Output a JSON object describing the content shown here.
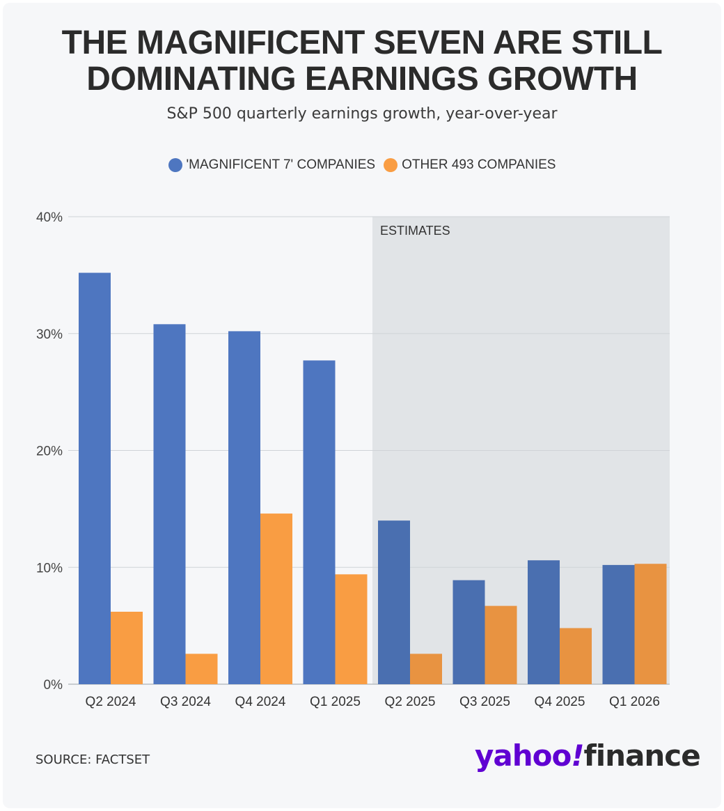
{
  "title_line1": "THE MAGNIFICENT SEVEN ARE STILL",
  "title_line2": "DOMINATING EARNINGS GROWTH",
  "subtitle": "S&P 500 quarterly earnings growth, year-over-year",
  "source": "SOURCE: FACTSET",
  "logo": {
    "part1": "yahoo",
    "bang": "!",
    "part2": "finance"
  },
  "colors": {
    "mag7": "#4e76c0",
    "mag7_est": "#4a6fb0",
    "other": "#f99d43",
    "other_est": "#e89341",
    "estimate_shade": "#e1e4e7",
    "grid": "#cfd3d7"
  },
  "chart_data": {
    "type": "bar",
    "title": "THE MAGNIFICENT SEVEN ARE STILL DOMINATING EARNINGS GROWTH",
    "subtitle": "S&P 500 quarterly earnings growth, year-over-year",
    "categories": [
      "Q2 2024",
      "Q3 2024",
      "Q4 2024",
      "Q1 2025",
      "Q2 2025",
      "Q3 2025",
      "Q4 2025",
      "Q1 2026"
    ],
    "series": [
      {
        "name": "'MAGNIFICENT 7' COMPANIES",
        "values": [
          35.2,
          30.8,
          30.2,
          27.7,
          14.0,
          8.9,
          10.6,
          10.2
        ]
      },
      {
        "name": "OTHER 493 COMPANIES",
        "values": [
          6.2,
          2.6,
          14.6,
          9.4,
          2.6,
          6.7,
          4.8,
          10.3
        ]
      }
    ],
    "ylim": [
      0,
      40
    ],
    "yticks": [
      0,
      10,
      20,
      30,
      40
    ],
    "ytick_labels": [
      "0%",
      "10%",
      "20%",
      "30%",
      "40%"
    ],
    "grid": true,
    "legend": "top-center",
    "estimates_label": "ESTIMATES",
    "estimates_from_index": 4
  }
}
